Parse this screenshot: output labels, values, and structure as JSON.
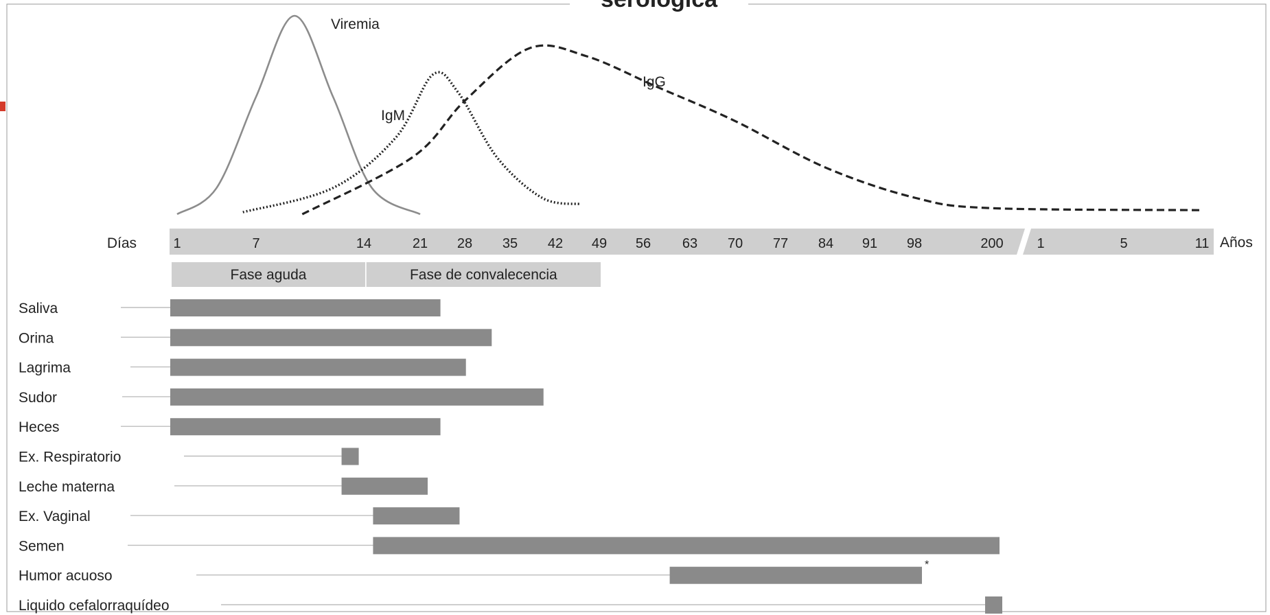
{
  "header": {
    "title_fragment": "serológica"
  },
  "chart_data": {
    "type": "timeline",
    "colors": {
      "curve_viremia": "#8c8c8c",
      "curve_antibody": "#222222",
      "axis_band": "#cfcfcf",
      "phase_band": "#cfcfcf",
      "detection_bar": "#8a8a8a",
      "leader_line": "#bdbdbd",
      "frame": "#9a9a9a",
      "accent_left": "#d43a2a"
    },
    "axis": {
      "left_label": "Días",
      "right_label": "Años",
      "day_ticks": [
        "1",
        "7",
        "14",
        "21",
        "28",
        "35",
        "42",
        "49",
        "56",
        "63",
        "70",
        "77",
        "84",
        "91",
        "98",
        "200"
      ],
      "year_ticks": [
        "1",
        "5",
        "11"
      ]
    },
    "phases": [
      {
        "label": "Fase aguda",
        "start_day": 1,
        "end_day": 14
      },
      {
        "label": "Fase de convalecencia",
        "start_day": 15,
        "end_day": 49
      }
    ],
    "curves": [
      {
        "name": "Viremia",
        "style": "solid",
        "points": [
          [
            1,
            0.02
          ],
          [
            4,
            0.15
          ],
          [
            7,
            0.6
          ],
          [
            9.5,
            1.0
          ],
          [
            12,
            0.6
          ],
          [
            15,
            0.15
          ],
          [
            21,
            0.02
          ]
        ]
      },
      {
        "name": "IgM",
        "style": "dotted",
        "points": [
          [
            6,
            0.03
          ],
          [
            12,
            0.15
          ],
          [
            18,
            0.4
          ],
          [
            23,
            0.71
          ],
          [
            27,
            0.62
          ],
          [
            33,
            0.3
          ],
          [
            40,
            0.1
          ],
          [
            46,
            0.07
          ]
        ]
      },
      {
        "name": "IgG",
        "style": "dashed",
        "points": [
          [
            10,
            0.02
          ],
          [
            20,
            0.3
          ],
          [
            28,
            0.58
          ],
          [
            38,
            0.84
          ],
          [
            47,
            0.8
          ],
          [
            58,
            0.65
          ],
          [
            70,
            0.48
          ],
          [
            84,
            0.25
          ],
          [
            100,
            0.1
          ],
          [
            200,
            0.05
          ],
          [
            "11 Años",
            0.04
          ]
        ]
      }
    ],
    "detection": [
      {
        "label": "Saliva",
        "start_day": 1,
        "end_day": 23,
        "marker": ""
      },
      {
        "label": "Orina",
        "start_day": 1,
        "end_day": 31,
        "marker": ""
      },
      {
        "label": "Lagrima",
        "start_day": 1,
        "end_day": 27,
        "marker": ""
      },
      {
        "label": "Sudor",
        "start_day": 1,
        "end_day": 39,
        "marker": ""
      },
      {
        "label": "Heces",
        "start_day": 1,
        "end_day": 23,
        "marker": ""
      },
      {
        "label": "Ex. Respiratorio",
        "start_day": 13,
        "end_day": 14,
        "marker": ""
      },
      {
        "label": "Leche materna",
        "start_day": 13,
        "end_day": 21,
        "marker": ""
      },
      {
        "label": "Ex. Vaginal",
        "start_day": 16,
        "end_day": 26,
        "marker": ""
      },
      {
        "label": "Semen",
        "start_day": 16,
        "end_day": 200,
        "marker": ""
      },
      {
        "label": "Humor acuoso",
        "start_day": 61,
        "end_day": 98,
        "marker": "*"
      },
      {
        "label": "Liquido cefalorraquídeo",
        "start_day": 200,
        "end_day": 201,
        "marker": ""
      }
    ]
  }
}
